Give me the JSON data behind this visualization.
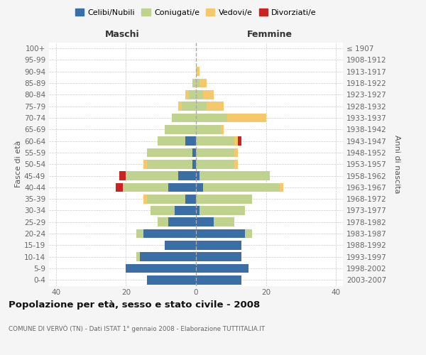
{
  "age_groups": [
    "0-4",
    "5-9",
    "10-14",
    "15-19",
    "20-24",
    "25-29",
    "30-34",
    "35-39",
    "40-44",
    "45-49",
    "50-54",
    "55-59",
    "60-64",
    "65-69",
    "70-74",
    "75-79",
    "80-84",
    "85-89",
    "90-94",
    "95-99",
    "100+"
  ],
  "birth_years": [
    "2003-2007",
    "1998-2002",
    "1993-1997",
    "1988-1992",
    "1983-1987",
    "1978-1982",
    "1973-1977",
    "1968-1972",
    "1963-1967",
    "1958-1962",
    "1953-1957",
    "1948-1952",
    "1943-1947",
    "1938-1942",
    "1933-1937",
    "1928-1932",
    "1923-1927",
    "1918-1922",
    "1913-1917",
    "1908-1912",
    "≤ 1907"
  ],
  "maschi": {
    "celibi": [
      14,
      20,
      16,
      9,
      15,
      8,
      6,
      3,
      8,
      5,
      1,
      1,
      3,
      0,
      0,
      0,
      0,
      0,
      0,
      0,
      0
    ],
    "coniugati": [
      0,
      0,
      1,
      0,
      2,
      3,
      7,
      11,
      13,
      15,
      13,
      13,
      8,
      9,
      7,
      4,
      2,
      1,
      0,
      0,
      0
    ],
    "vedovi": [
      0,
      0,
      0,
      0,
      0,
      0,
      0,
      1,
      0,
      0,
      1,
      0,
      0,
      0,
      0,
      1,
      1,
      0,
      0,
      0,
      0
    ],
    "divorziati": [
      0,
      0,
      0,
      0,
      0,
      0,
      0,
      0,
      2,
      2,
      0,
      0,
      0,
      0,
      0,
      0,
      0,
      0,
      0,
      0,
      0
    ]
  },
  "femmine": {
    "nubili": [
      13,
      15,
      13,
      13,
      14,
      5,
      1,
      0,
      2,
      1,
      0,
      0,
      0,
      0,
      0,
      0,
      0,
      0,
      0,
      0,
      0
    ],
    "coniugate": [
      0,
      0,
      0,
      0,
      2,
      6,
      13,
      16,
      22,
      20,
      11,
      11,
      11,
      7,
      9,
      3,
      2,
      1,
      0,
      0,
      0
    ],
    "vedove": [
      0,
      0,
      0,
      0,
      0,
      0,
      0,
      0,
      1,
      0,
      1,
      1,
      1,
      1,
      11,
      5,
      3,
      2,
      1,
      0,
      0
    ],
    "divorziate": [
      0,
      0,
      0,
      0,
      0,
      0,
      0,
      0,
      0,
      0,
      0,
      0,
      1,
      0,
      0,
      0,
      0,
      0,
      0,
      0,
      0
    ]
  },
  "colors": {
    "celibi": "#3a6ea5",
    "coniugati": "#bfd38e",
    "vedovi": "#f5c96a",
    "divorziati": "#cc2222"
  },
  "title": "Popolazione per età, sesso e stato civile - 2008",
  "subtitle": "COMUNE DI VERVÒ (TN) - Dati ISTAT 1° gennaio 2008 - Elaborazione TUTTITALIA.IT",
  "ylabel_left": "Fasce di età",
  "ylabel_right": "Anni di nascita",
  "xlabel_maschi": "Maschi",
  "xlabel_femmine": "Femmine",
  "xlim": 42,
  "bg_color": "#f5f5f5",
  "plot_bg": "#ffffff",
  "grid_color": "#cccccc"
}
